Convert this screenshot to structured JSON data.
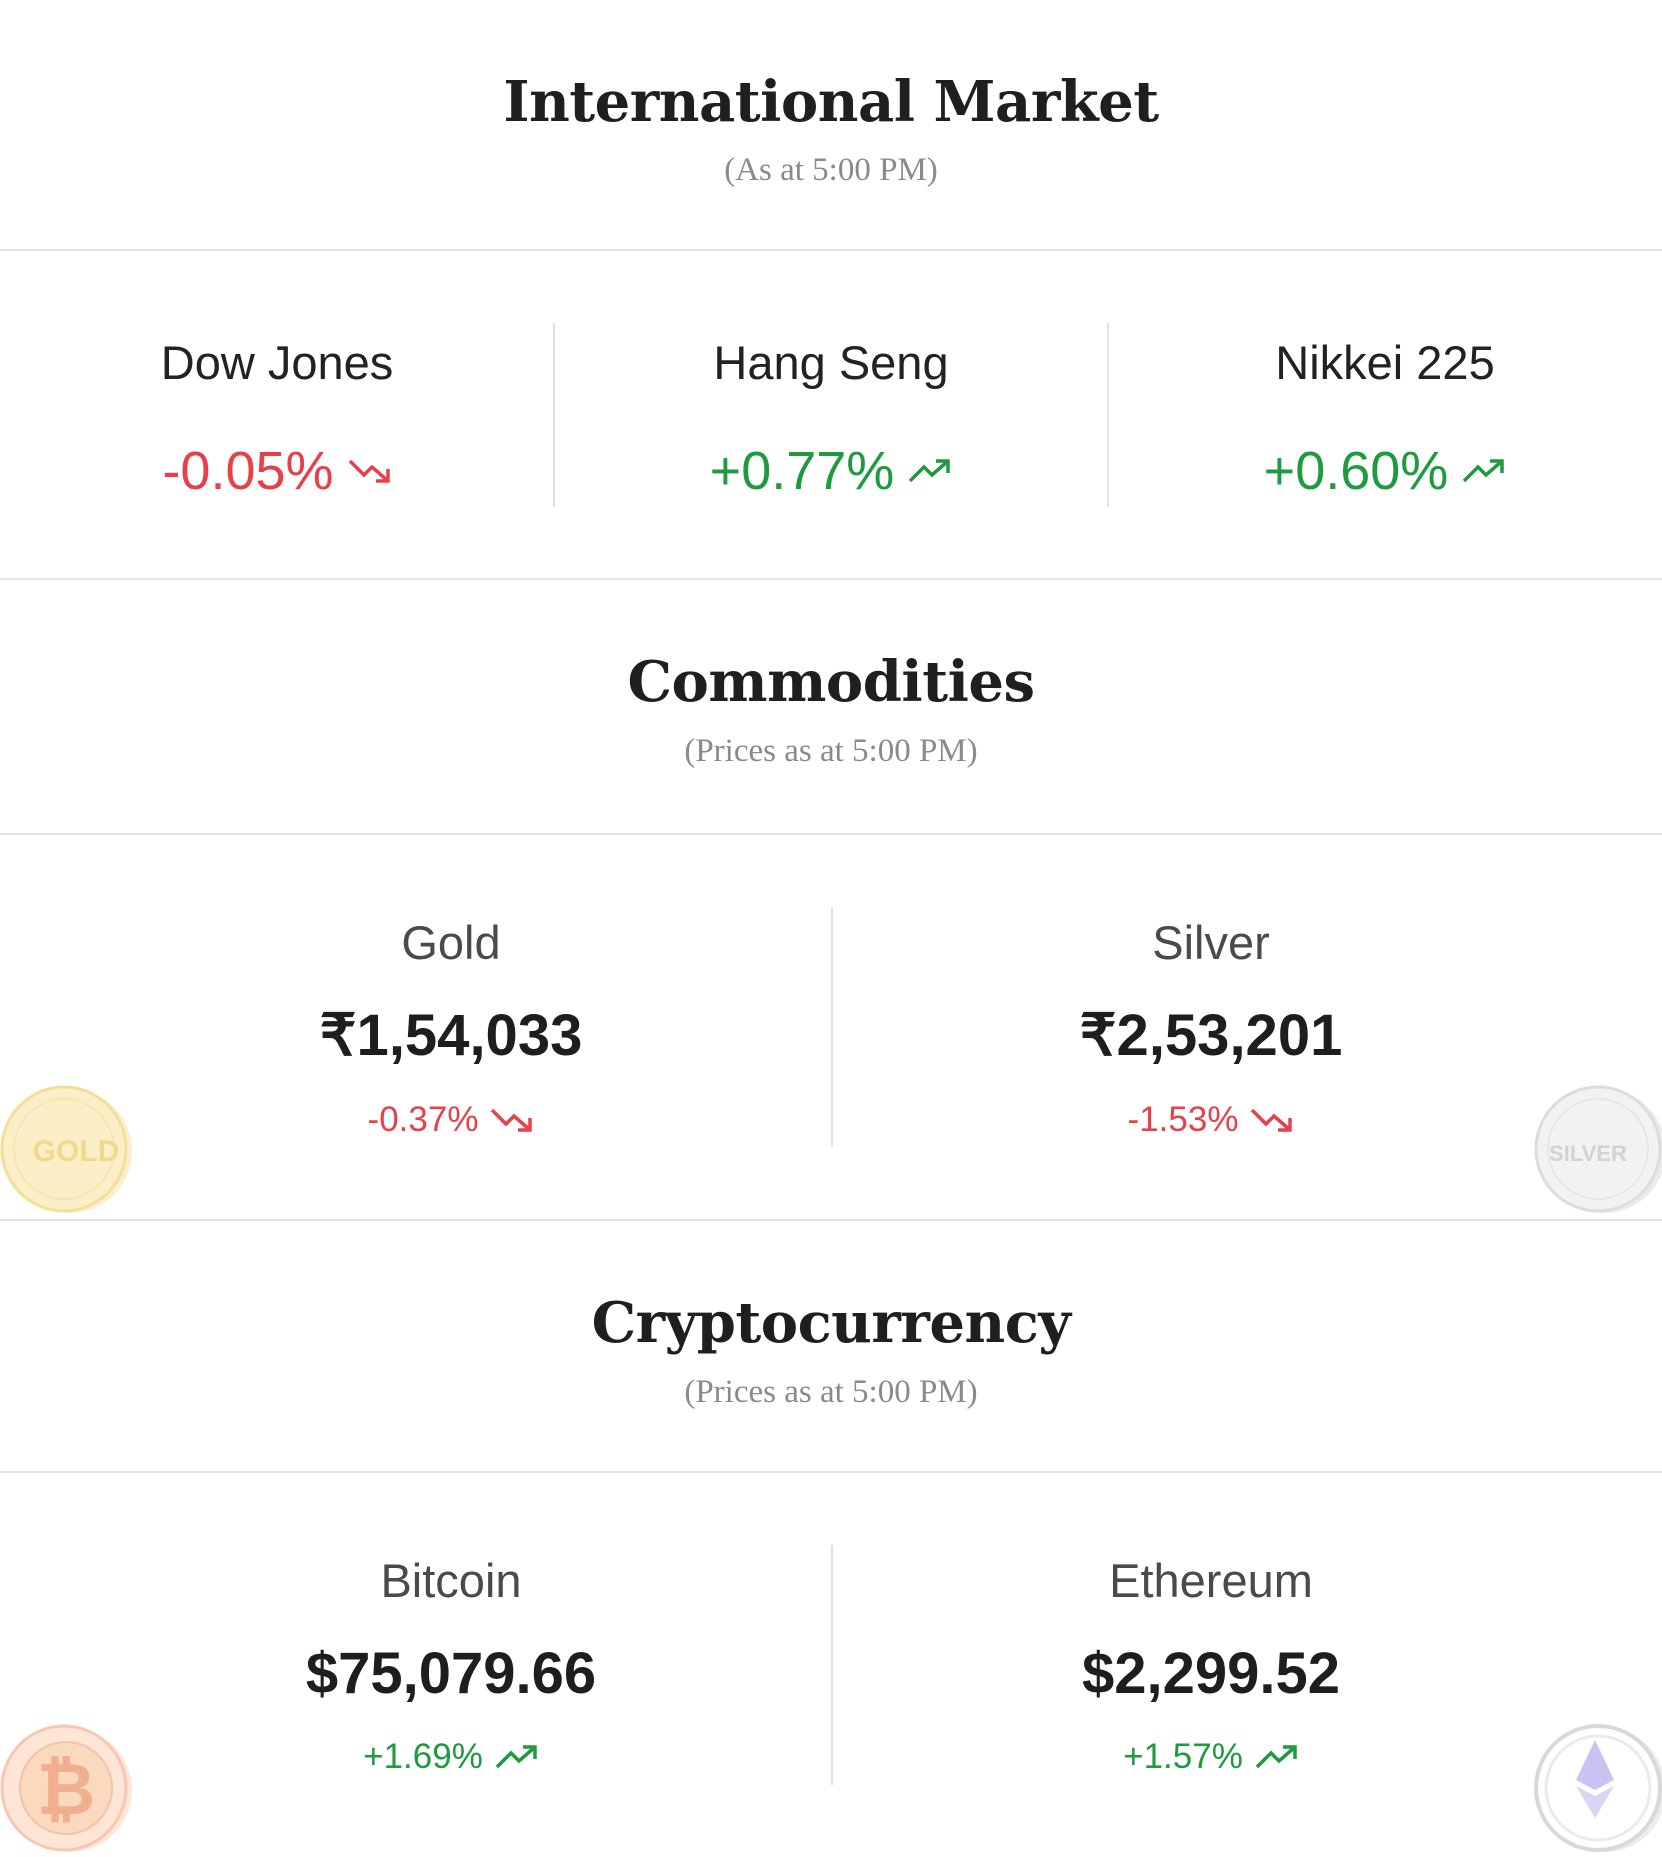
{
  "international": {
    "title": "International Market",
    "subtitle": "(As at 5:00 PM)",
    "indices": [
      {
        "name": "Dow Jones",
        "change": "-0.05%",
        "direction": "down"
      },
      {
        "name": "Hang Seng",
        "change": "+0.77%",
        "direction": "up"
      },
      {
        "name": "Nikkei 225",
        "change": "+0.60%",
        "direction": "up"
      }
    ]
  },
  "commodities": {
    "title": "Commodities",
    "subtitle": "(Prices as at 5:00 PM)",
    "items": [
      {
        "name": "Gold",
        "price": "₹1,54,033",
        "change": "-0.37%",
        "direction": "down",
        "coin_text": "GOLD"
      },
      {
        "name": "Silver",
        "price": "₹2,53,201",
        "change": "-1.53%",
        "direction": "down",
        "coin_text": "SILVER"
      }
    ]
  },
  "crypto": {
    "title": "Cryptocurrency",
    "subtitle": "(Prices as at 5:00 PM)",
    "items": [
      {
        "name": "Bitcoin",
        "price": "$75,079.66",
        "change": "+1.69%",
        "direction": "up",
        "coin_icon": "bitcoin-icon"
      },
      {
        "name": "Ethereum",
        "price": "$2,299.52",
        "change": "+1.57%",
        "direction": "up",
        "coin_icon": "ethereum-icon"
      }
    ]
  },
  "colors": {
    "up": "#1e9a3f",
    "down": "#e6414a"
  }
}
